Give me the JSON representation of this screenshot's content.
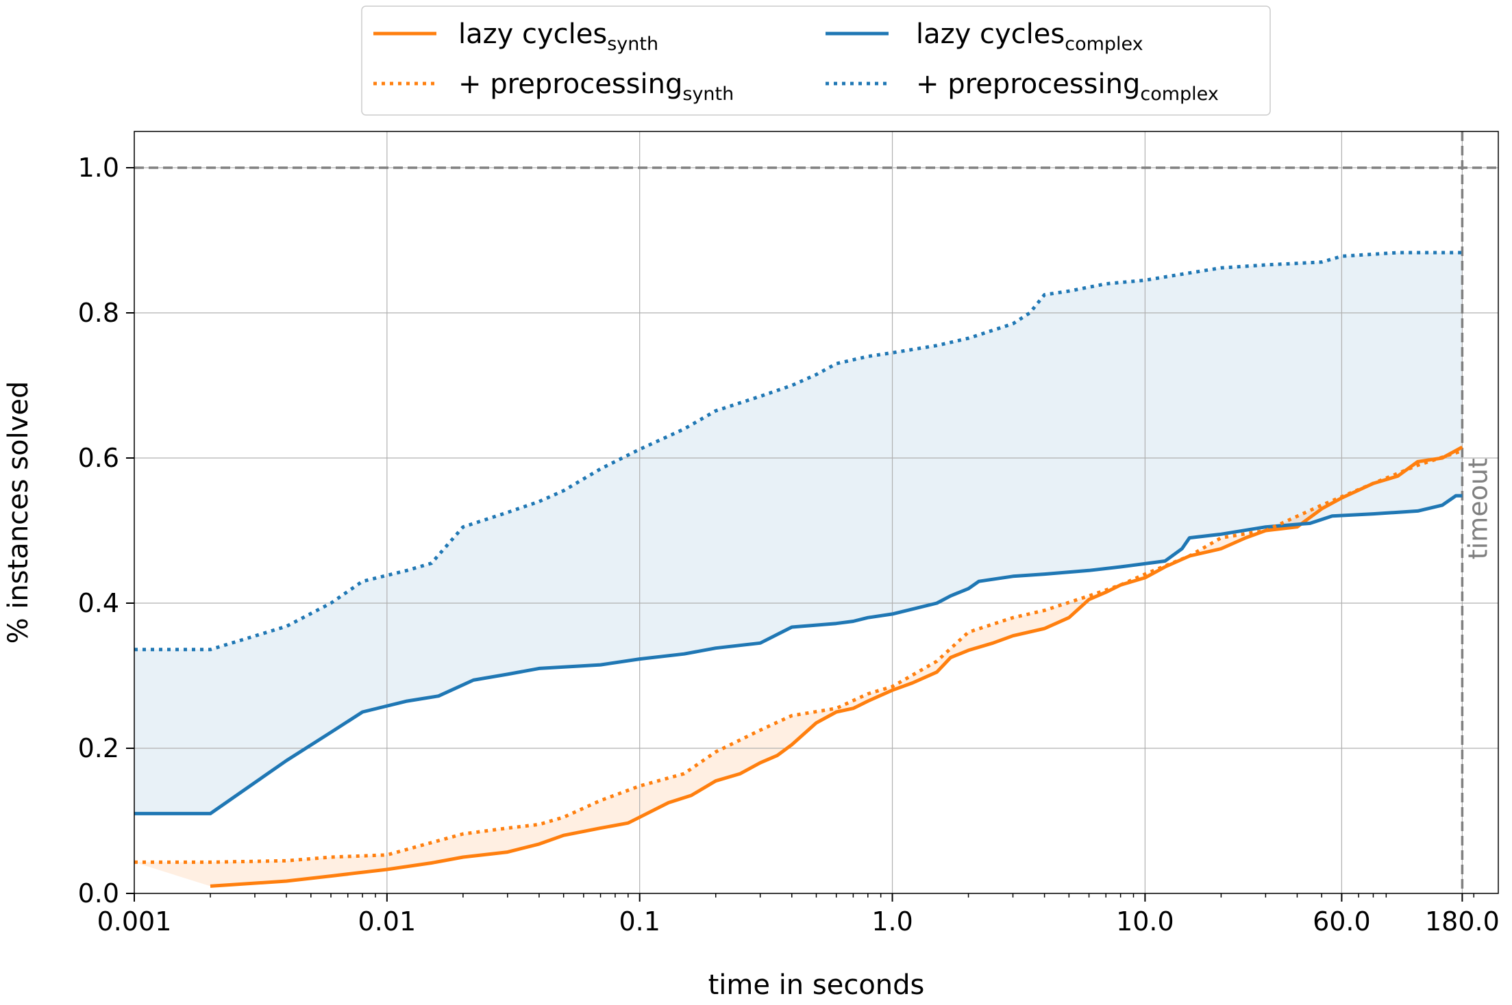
{
  "chart_data": {
    "type": "line",
    "xlabel": "time in seconds",
    "ylabel": "% instances solved",
    "x_scale": "log",
    "xlim": [
      0.001,
      250
    ],
    "ylim": [
      0.0,
      1.05
    ],
    "x_ticks": [
      {
        "value": 0.001,
        "label": "0.001"
      },
      {
        "value": 0.01,
        "label": "0.01"
      },
      {
        "value": 0.1,
        "label": "0.1"
      },
      {
        "value": 1.0,
        "label": "1.0"
      },
      {
        "value": 10.0,
        "label": "10.0"
      },
      {
        "value": 60.0,
        "label": "60.0"
      },
      {
        "value": 180.0,
        "label": "180.0"
      }
    ],
    "y_ticks": [
      {
        "value": 0.0,
        "label": "0.0"
      },
      {
        "value": 0.2,
        "label": "0.2"
      },
      {
        "value": 0.4,
        "label": "0.4"
      },
      {
        "value": 0.6,
        "label": "0.6"
      },
      {
        "value": 0.8,
        "label": "0.8"
      },
      {
        "value": 1.0,
        "label": "1.0"
      }
    ],
    "grid": true,
    "reference_lines": {
      "horizontal": {
        "y": 1.0,
        "style": "dashed",
        "color": "#808080"
      },
      "vertical": {
        "x": 180.0,
        "style": "dashed",
        "color": "#808080",
        "label": "timeout"
      }
    },
    "legend": {
      "placement": "top-center-outside",
      "columns": 2
    },
    "series": [
      {
        "name": "lazy cycles",
        "subscript": "synth",
        "color": "#ff7f0e",
        "style": "solid",
        "points": [
          [
            0.002,
            0.01
          ],
          [
            0.004,
            0.017
          ],
          [
            0.006,
            0.024
          ],
          [
            0.01,
            0.033
          ],
          [
            0.015,
            0.042
          ],
          [
            0.02,
            0.05
          ],
          [
            0.03,
            0.057
          ],
          [
            0.04,
            0.068
          ],
          [
            0.05,
            0.08
          ],
          [
            0.07,
            0.09
          ],
          [
            0.09,
            0.097
          ],
          [
            0.1,
            0.105
          ],
          [
            0.13,
            0.125
          ],
          [
            0.16,
            0.135
          ],
          [
            0.2,
            0.155
          ],
          [
            0.25,
            0.165
          ],
          [
            0.3,
            0.18
          ],
          [
            0.35,
            0.19
          ],
          [
            0.4,
            0.205
          ],
          [
            0.5,
            0.235
          ],
          [
            0.6,
            0.25
          ],
          [
            0.7,
            0.255
          ],
          [
            0.8,
            0.265
          ],
          [
            1.0,
            0.28
          ],
          [
            1.2,
            0.29
          ],
          [
            1.5,
            0.305
          ],
          [
            1.7,
            0.325
          ],
          [
            2.0,
            0.335
          ],
          [
            2.5,
            0.345
          ],
          [
            3.0,
            0.355
          ],
          [
            4.0,
            0.365
          ],
          [
            5.0,
            0.38
          ],
          [
            6.0,
            0.405
          ],
          [
            7.0,
            0.415
          ],
          [
            8.0,
            0.425
          ],
          [
            10.0,
            0.435
          ],
          [
            12.0,
            0.45
          ],
          [
            15.0,
            0.465
          ],
          [
            20.0,
            0.475
          ],
          [
            25.0,
            0.49
          ],
          [
            30.0,
            0.5
          ],
          [
            40.0,
            0.505
          ],
          [
            50.0,
            0.53
          ],
          [
            60.0,
            0.545
          ],
          [
            80.0,
            0.565
          ],
          [
            100.0,
            0.575
          ],
          [
            120.0,
            0.595
          ],
          [
            150.0,
            0.6
          ],
          [
            180.0,
            0.615
          ]
        ]
      },
      {
        "name": "lazy cycles",
        "subscript": "complex",
        "color": "#1f77b4",
        "style": "solid",
        "points": [
          [
            0.001,
            0.11
          ],
          [
            0.002,
            0.11
          ],
          [
            0.004,
            0.183
          ],
          [
            0.006,
            0.222
          ],
          [
            0.008,
            0.25
          ],
          [
            0.012,
            0.265
          ],
          [
            0.016,
            0.272
          ],
          [
            0.022,
            0.294
          ],
          [
            0.03,
            0.302
          ],
          [
            0.04,
            0.31
          ],
          [
            0.07,
            0.315
          ],
          [
            0.1,
            0.323
          ],
          [
            0.15,
            0.33
          ],
          [
            0.2,
            0.338
          ],
          [
            0.3,
            0.345
          ],
          [
            0.4,
            0.367
          ],
          [
            0.6,
            0.372
          ],
          [
            0.7,
            0.375
          ],
          [
            0.8,
            0.38
          ],
          [
            1.0,
            0.385
          ],
          [
            1.5,
            0.4
          ],
          [
            1.7,
            0.41
          ],
          [
            2.0,
            0.42
          ],
          [
            2.2,
            0.43
          ],
          [
            3.0,
            0.437
          ],
          [
            4.0,
            0.44
          ],
          [
            6.0,
            0.445
          ],
          [
            8.0,
            0.45
          ],
          [
            12.0,
            0.458
          ],
          [
            14.0,
            0.475
          ],
          [
            15.0,
            0.49
          ],
          [
            20.0,
            0.495
          ],
          [
            30.0,
            0.505
          ],
          [
            45.0,
            0.51
          ],
          [
            55.0,
            0.52
          ],
          [
            80.0,
            0.523
          ],
          [
            120.0,
            0.527
          ],
          [
            150.0,
            0.535
          ],
          [
            170.0,
            0.548
          ],
          [
            180.0,
            0.548
          ]
        ]
      },
      {
        "name": "+ preprocessing",
        "subscript": "synth",
        "color": "#ff7f0e",
        "style": "dotted",
        "points": [
          [
            0.001,
            0.043
          ],
          [
            0.002,
            0.043
          ],
          [
            0.004,
            0.045
          ],
          [
            0.006,
            0.05
          ],
          [
            0.01,
            0.053
          ],
          [
            0.015,
            0.07
          ],
          [
            0.02,
            0.082
          ],
          [
            0.03,
            0.09
          ],
          [
            0.04,
            0.095
          ],
          [
            0.05,
            0.105
          ],
          [
            0.07,
            0.128
          ],
          [
            0.1,
            0.148
          ],
          [
            0.15,
            0.165
          ],
          [
            0.2,
            0.195
          ],
          [
            0.3,
            0.225
          ],
          [
            0.4,
            0.245
          ],
          [
            0.6,
            0.255
          ],
          [
            0.8,
            0.275
          ],
          [
            1.0,
            0.285
          ],
          [
            1.5,
            0.32
          ],
          [
            2.0,
            0.36
          ],
          [
            3.0,
            0.38
          ],
          [
            4.0,
            0.39
          ],
          [
            6.0,
            0.41
          ],
          [
            8.0,
            0.425
          ],
          [
            10.0,
            0.44
          ],
          [
            15.0,
            0.465
          ],
          [
            20.0,
            0.49
          ],
          [
            30.0,
            0.5
          ],
          [
            50.0,
            0.535
          ],
          [
            80.0,
            0.565
          ],
          [
            120.0,
            0.59
          ],
          [
            180.0,
            0.61
          ]
        ]
      },
      {
        "name": "+ preprocessing",
        "subscript": "complex",
        "color": "#1f77b4",
        "style": "dotted",
        "points": [
          [
            0.001,
            0.336
          ],
          [
            0.002,
            0.336
          ],
          [
            0.004,
            0.368
          ],
          [
            0.006,
            0.4
          ],
          [
            0.008,
            0.43
          ],
          [
            0.012,
            0.445
          ],
          [
            0.015,
            0.455
          ],
          [
            0.02,
            0.505
          ],
          [
            0.03,
            0.525
          ],
          [
            0.04,
            0.54
          ],
          [
            0.05,
            0.555
          ],
          [
            0.07,
            0.585
          ],
          [
            0.1,
            0.612
          ],
          [
            0.15,
            0.64
          ],
          [
            0.2,
            0.665
          ],
          [
            0.3,
            0.685
          ],
          [
            0.4,
            0.7
          ],
          [
            0.5,
            0.715
          ],
          [
            0.6,
            0.73
          ],
          [
            0.8,
            0.74
          ],
          [
            1.0,
            0.745
          ],
          [
            1.5,
            0.755
          ],
          [
            2.0,
            0.765
          ],
          [
            3.0,
            0.785
          ],
          [
            3.5,
            0.8
          ],
          [
            4.0,
            0.825
          ],
          [
            5.0,
            0.83
          ],
          [
            7.0,
            0.84
          ],
          [
            10.0,
            0.845
          ],
          [
            15.0,
            0.855
          ],
          [
            20.0,
            0.862
          ],
          [
            30.0,
            0.866
          ],
          [
            50.0,
            0.87
          ],
          [
            60.0,
            0.878
          ],
          [
            100.0,
            0.883
          ],
          [
            180.0,
            0.883
          ]
        ]
      }
    ],
    "fills": [
      {
        "between": [
          1,
          3
        ],
        "color": "#1f77b4",
        "opacity": 0.1
      },
      {
        "between": [
          0,
          2
        ],
        "color": "#ff7f0e",
        "opacity": 0.12
      }
    ]
  }
}
